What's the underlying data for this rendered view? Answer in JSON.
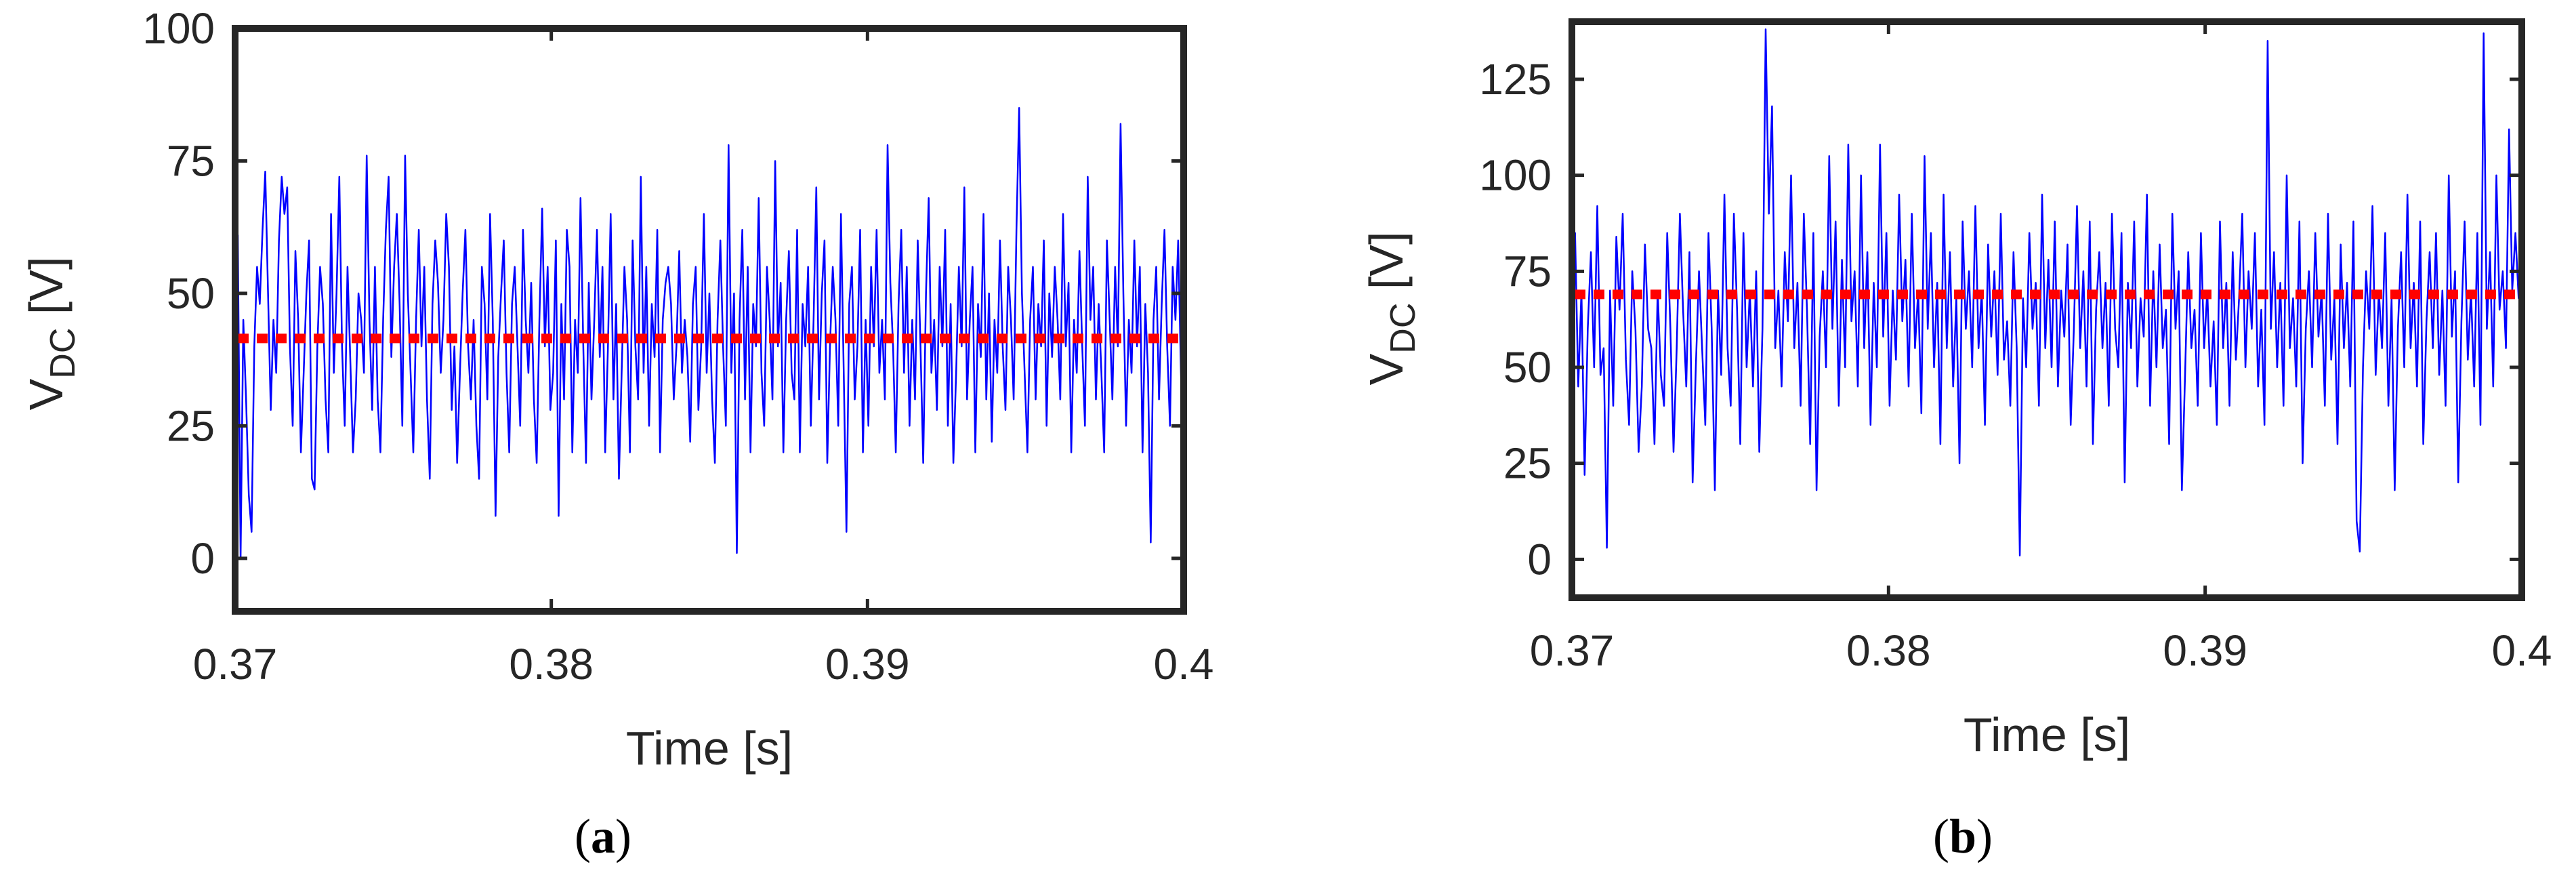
{
  "chart_data": [
    {
      "type": "line",
      "panel_label": "a",
      "xlabel": "Time [s]",
      "ylabel": {
        "main": "V",
        "subscript": "DC",
        "unit": " [V]"
      },
      "xlim": [
        0.37,
        0.4
      ],
      "ylim": [
        -10,
        100
      ],
      "xticks": [
        0.37,
        0.38,
        0.39,
        0.4
      ],
      "xtick_labels": [
        "0.37",
        "0.38",
        "0.39",
        "0.4"
      ],
      "yticks": [
        0,
        25,
        50,
        75,
        100
      ],
      "ytick_labels": [
        "0",
        "25",
        "50",
        "75",
        "100"
      ],
      "grid": false,
      "signal_color": "#0000FF",
      "mean_color": "#FF0000",
      "mean_value": 41.5,
      "x_start": 0.37,
      "x_end": 0.4,
      "values": [
        28,
        61,
        0,
        45,
        30,
        12,
        5,
        40,
        55,
        48,
        62,
        73,
        50,
        28,
        45,
        35,
        60,
        72,
        65,
        70,
        40,
        25,
        58,
        45,
        20,
        35,
        50,
        60,
        15,
        13,
        40,
        55,
        48,
        30,
        20,
        65,
        35,
        50,
        72,
        40,
        25,
        55,
        38,
        20,
        30,
        50,
        45,
        35,
        76,
        45,
        28,
        55,
        30,
        20,
        45,
        62,
        72,
        38,
        55,
        65,
        48,
        25,
        76,
        50,
        35,
        20,
        45,
        62,
        40,
        55,
        30,
        15,
        48,
        60,
        52,
        35,
        45,
        65,
        55,
        28,
        40,
        18,
        35,
        50,
        62,
        40,
        30,
        45,
        25,
        15,
        55,
        48,
        30,
        65,
        45,
        8,
        38,
        50,
        60,
        35,
        20,
        48,
        55,
        40,
        25,
        62,
        45,
        35,
        52,
        30,
        18,
        45,
        66,
        40,
        55,
        28,
        35,
        60,
        8,
        48,
        30,
        62,
        55,
        20,
        45,
        35,
        68,
        40,
        18,
        52,
        30,
        45,
        62,
        38,
        55,
        20,
        40,
        65,
        30,
        48,
        15,
        35,
        55,
        45,
        20,
        60,
        40,
        30,
        72,
        35,
        55,
        25,
        48,
        38,
        62,
        20,
        45,
        52,
        55,
        48,
        30,
        40,
        58,
        35,
        45,
        38,
        22,
        48,
        55,
        28,
        40,
        65,
        35,
        50,
        30,
        18,
        45,
        60,
        40,
        25,
        78,
        35,
        50,
        1,
        45,
        62,
        30,
        55,
        20,
        48,
        40,
        68,
        35,
        25,
        55,
        45,
        30,
        75,
        40,
        52,
        20,
        45,
        58,
        35,
        30,
        62,
        20,
        48,
        40,
        55,
        25,
        45,
        70,
        30,
        50,
        60,
        18,
        40,
        55,
        45,
        25,
        65,
        35,
        5,
        48,
        55,
        30,
        40,
        62,
        20,
        45,
        25,
        55,
        40,
        62,
        35,
        45,
        30,
        78,
        52,
        40,
        20,
        48,
        62,
        35,
        55,
        25,
        45,
        30,
        60,
        40,
        18,
        50,
        68,
        35,
        45,
        28,
        55,
        40,
        62,
        25,
        48,
        18,
        35,
        55,
        40,
        70,
        30,
        45,
        55,
        20,
        48,
        38,
        65,
        30,
        50,
        22,
        45,
        35,
        60,
        40,
        28,
        55,
        45,
        30,
        62,
        85,
        50,
        35,
        20,
        45,
        55,
        30,
        48,
        40,
        60,
        25,
        50,
        38,
        55,
        45,
        30,
        65,
        40,
        52,
        20,
        45,
        35,
        58,
        40,
        25,
        72,
        45,
        55,
        30,
        48,
        35,
        20,
        60,
        45,
        30,
        55,
        40,
        82,
        50,
        25,
        45,
        35,
        60,
        40,
        55,
        20,
        48,
        35,
        3,
        45,
        55,
        30,
        48,
        62,
        40,
        25,
        55,
        45,
        60,
        35,
        15
      ]
    },
    {
      "type": "line",
      "panel_label": "b",
      "xlabel": "Time [s]",
      "ylabel": {
        "main": "V",
        "subscript": "DC",
        "unit": " [V]"
      },
      "xlim": [
        0.37,
        0.4
      ],
      "ylim": [
        -10,
        140
      ],
      "xticks": [
        0.37,
        0.38,
        0.39,
        0.4
      ],
      "xtick_labels": [
        "0.37",
        "0.38",
        "0.39",
        "0.4"
      ],
      "yticks": [
        0,
        25,
        50,
        75,
        100,
        125
      ],
      "ytick_labels": [
        "0",
        "25",
        "50",
        "75",
        "100",
        "125"
      ],
      "grid": false,
      "signal_color": "#0000FF",
      "mean_color": "#FF0000",
      "mean_value": 69,
      "x_start": 0.37,
      "x_end": 0.4,
      "values": [
        52,
        85,
        45,
        70,
        22,
        60,
        80,
        50,
        92,
        48,
        55,
        3,
        70,
        40,
        84,
        65,
        90,
        52,
        35,
        75,
        60,
        28,
        45,
        82,
        60,
        55,
        30,
        70,
        48,
        40,
        85,
        60,
        28,
        55,
        90,
        65,
        45,
        80,
        20,
        50,
        75,
        55,
        35,
        85,
        60,
        18,
        70,
        48,
        95,
        55,
        40,
        90,
        65,
        30,
        85,
        50,
        70,
        45,
        75,
        28,
        60,
        138,
        90,
        118,
        55,
        70,
        45,
        80,
        62,
        100,
        55,
        72,
        40,
        90,
        65,
        30,
        85,
        18,
        58,
        75,
        50,
        105,
        60,
        88,
        40,
        78,
        50,
        108,
        62,
        75,
        45,
        100,
        55,
        80,
        35,
        72,
        50,
        108,
        58,
        85,
        40,
        70,
        52,
        95,
        62,
        78,
        45,
        90,
        55,
        70,
        38,
        105,
        60,
        85,
        50,
        72,
        30,
        95,
        55,
        80,
        45,
        68,
        25,
        88,
        60,
        75,
        50,
        92,
        55,
        70,
        35,
        82,
        58,
        75,
        48,
        90,
        52,
        62,
        40,
        80,
        55,
        1,
        68,
        50,
        85,
        60,
        72,
        40,
        95,
        55,
        78,
        50,
        88,
        45,
        70,
        58,
        82,
        35,
        60,
        92,
        55,
        75,
        45,
        88,
        30,
        65,
        80,
        55,
        72,
        40,
        90,
        60,
        50,
        85,
        20,
        72,
        55,
        88,
        45,
        68,
        58,
        95,
        40,
        75,
        50,
        82,
        55,
        65,
        30,
        90,
        60,
        75,
        18,
        48,
        80,
        55,
        65,
        40,
        85,
        55,
        70,
        45,
        62,
        35,
        88,
        55,
        72,
        40,
        80,
        52,
        68,
        90,
        50,
        75,
        60,
        85,
        45,
        65,
        35,
        135,
        60,
        80,
        50,
        72,
        40,
        100,
        55,
        68,
        45,
        88,
        25,
        60,
        75,
        50,
        85,
        58,
        70,
        40,
        90,
        52,
        68,
        30,
        82,
        55,
        72,
        45,
        88,
        10,
        2,
        50,
        75,
        60,
        92,
        48,
        70,
        55,
        85,
        40,
        68,
        18,
        60,
        80,
        50,
        95,
        55,
        72,
        45,
        88,
        30,
        62,
        80,
        55,
        85,
        48,
        70,
        40,
        100,
        58,
        75,
        20,
        62,
        88,
        52,
        70,
        45,
        85,
        35,
        137,
        60,
        80,
        45,
        100,
        65,
        75,
        55,
        112,
        70,
        85,
        68,
        72
      ]
    }
  ]
}
